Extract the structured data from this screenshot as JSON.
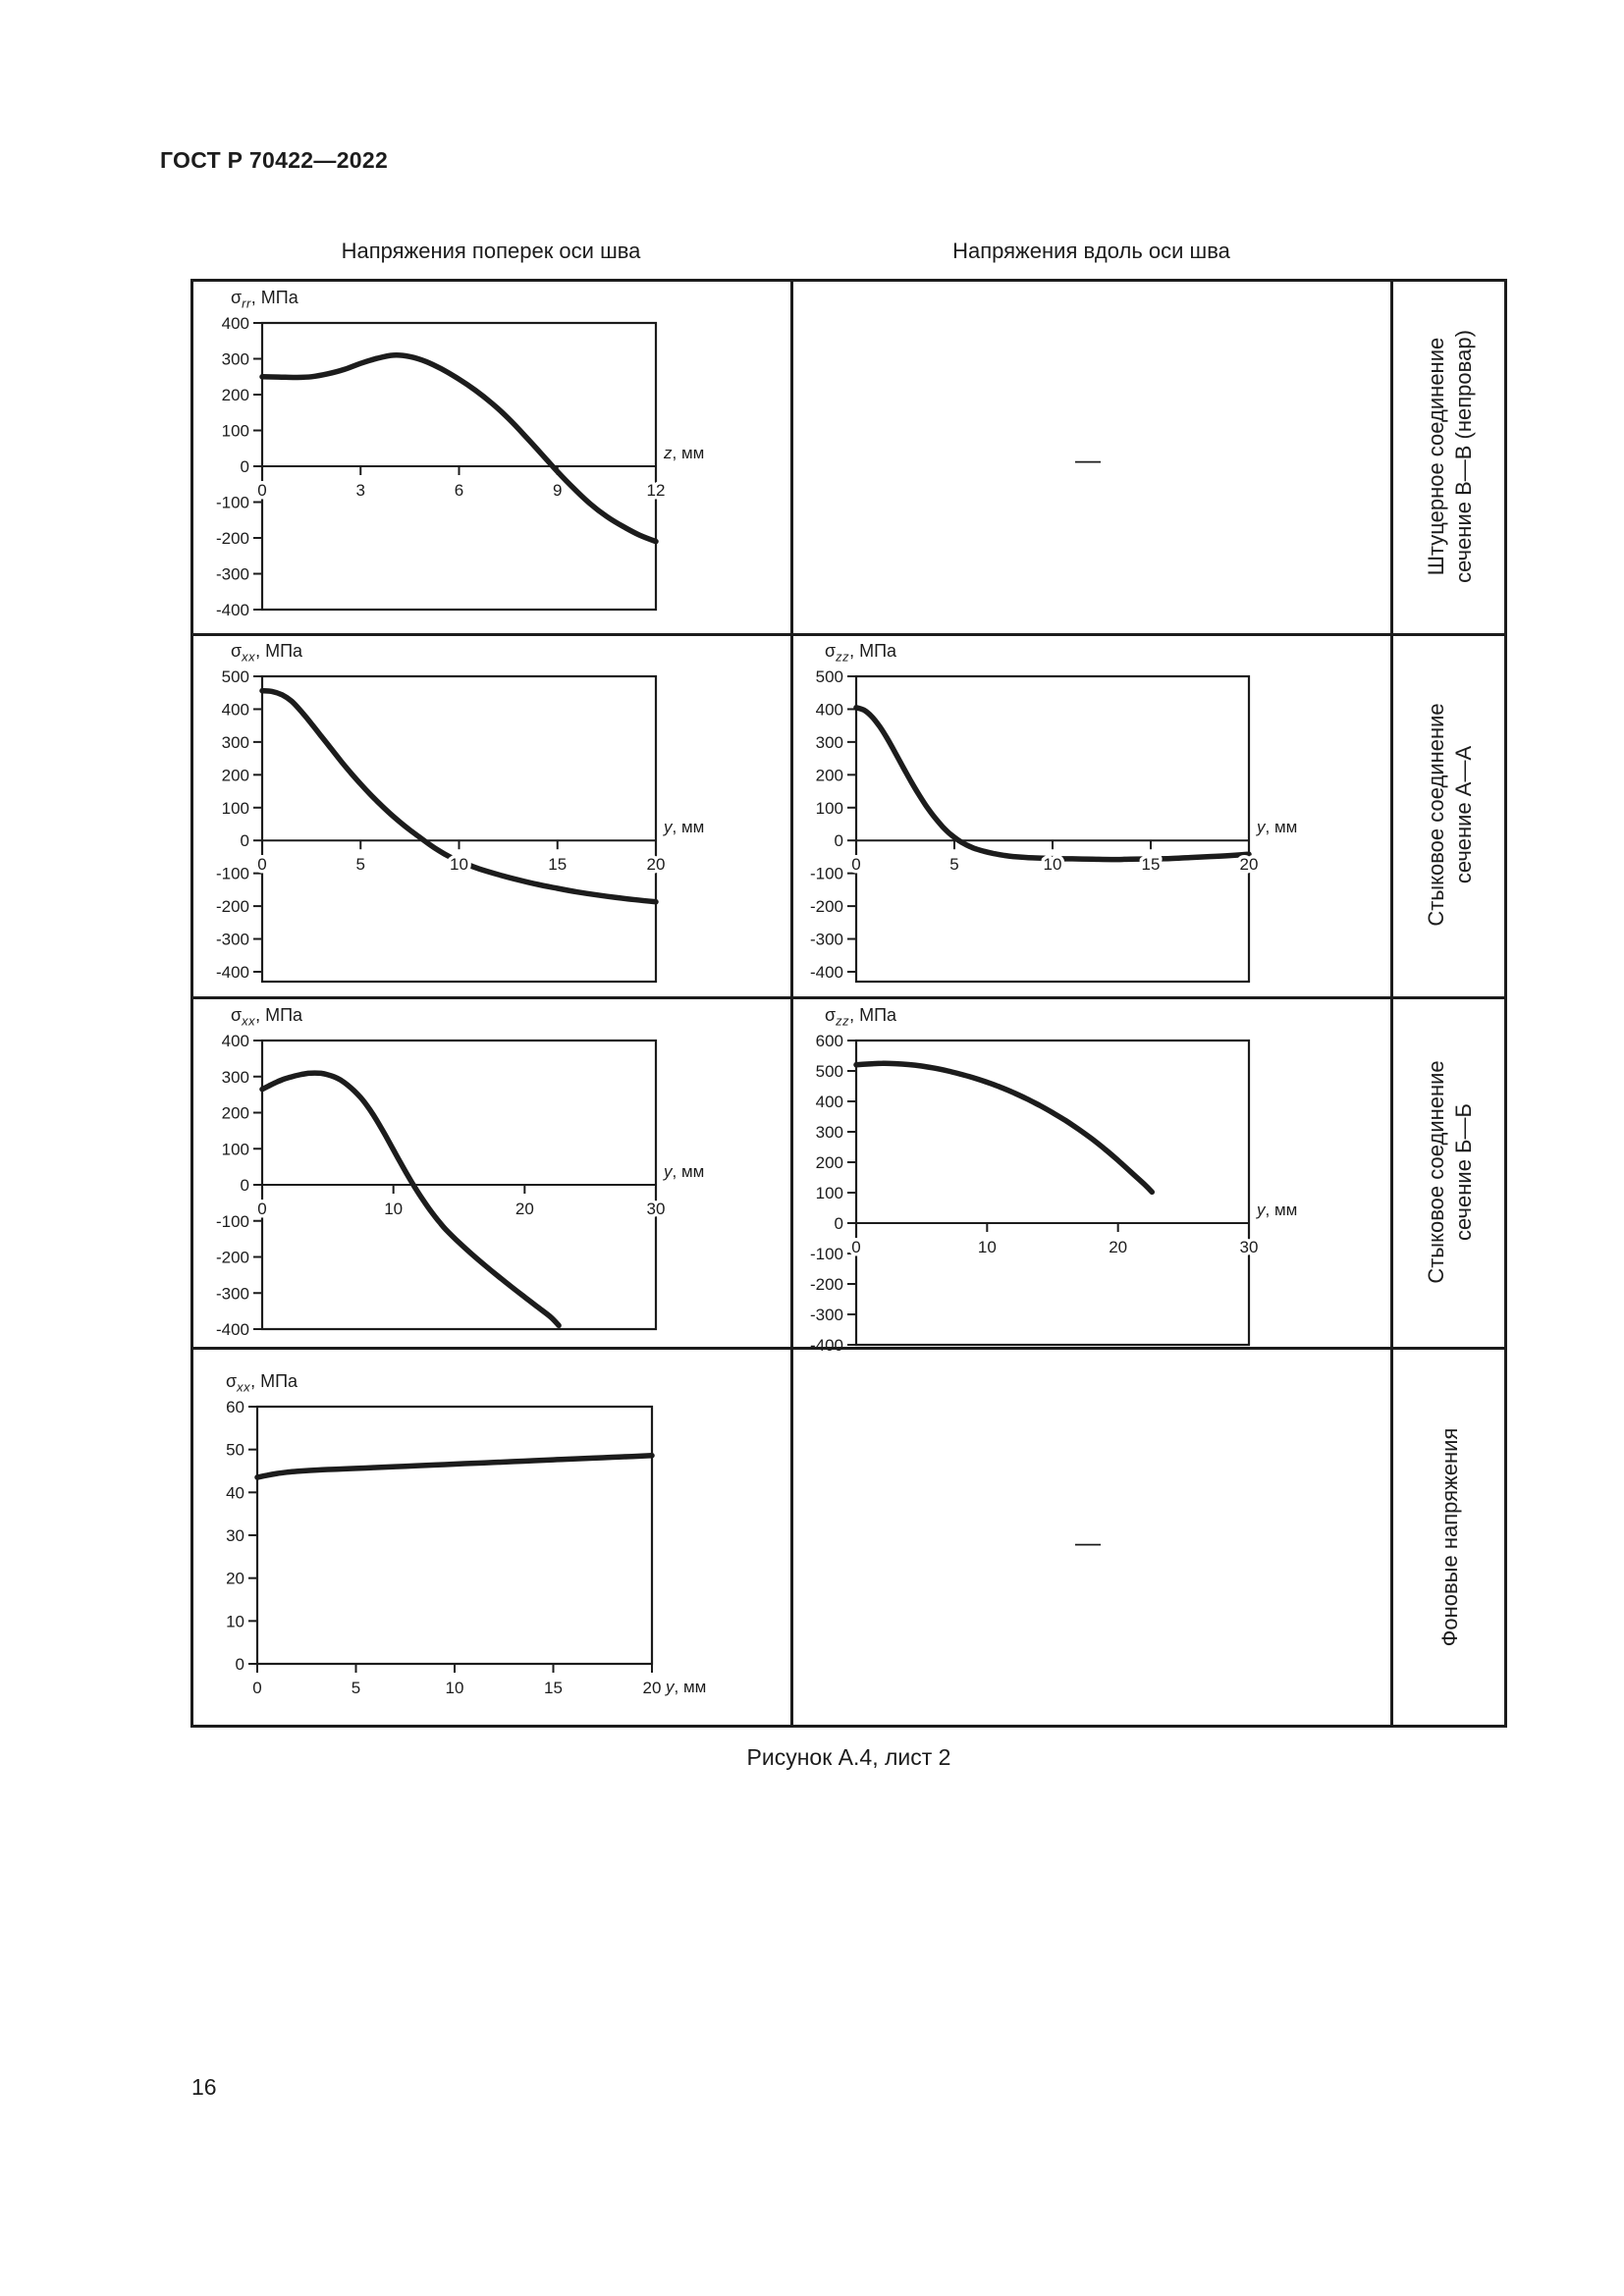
{
  "page": {
    "header": "ГОСТ Р 70422—2022",
    "caption": "Рисунок А.4, лист 2",
    "page_number": "16"
  },
  "table": {
    "column_headers": [
      "Напряжения поперек оси шва",
      "Напряжения вдоль оси шва"
    ],
    "row_labels": [
      {
        "line1": "Штуцерное соединение",
        "line2": "сечение В—В (непровар)"
      },
      {
        "line1": "Стыковое соединение",
        "line2": "сечение А—А"
      },
      {
        "line1": "Стыковое соединение",
        "line2": "сечение Б—Б"
      },
      {
        "line1": "Фоновые напряжения"
      }
    ],
    "empty_cell_dash": "—",
    "ink_color": "#1c1c1c"
  },
  "chart_data": [
    {
      "type": "line",
      "position": "row1-left",
      "ylabel": {
        "sigma": "σ",
        "sub": "rr",
        "unit": ", МПа"
      },
      "xlabel": {
        "var": "z",
        "unit": ", мм"
      },
      "xlim": [
        0,
        12
      ],
      "xticks": [
        0,
        3,
        6,
        9,
        12
      ],
      "yticks": [
        400,
        300,
        200,
        100,
        0,
        -100,
        -200,
        -300,
        -400
      ],
      "ylim_box": [
        -400,
        400
      ],
      "x_axis": "zero",
      "grid": false,
      "points": [
        [
          0,
          250
        ],
        [
          0.5,
          249
        ],
        [
          1,
          248
        ],
        [
          1.5,
          250
        ],
        [
          2,
          258
        ],
        [
          2.5,
          270
        ],
        [
          3,
          287
        ],
        [
          3.5,
          301
        ],
        [
          4,
          310
        ],
        [
          4.5,
          306
        ],
        [
          5,
          292
        ],
        [
          5.5,
          270
        ],
        [
          6,
          243
        ],
        [
          6.5,
          212
        ],
        [
          7,
          176
        ],
        [
          7.5,
          134
        ],
        [
          8,
          86
        ],
        [
          8.5,
          36
        ],
        [
          9,
          -15
        ],
        [
          9.5,
          -62
        ],
        [
          10,
          -105
        ],
        [
          10.5,
          -140
        ],
        [
          11,
          -168
        ],
        [
          11.5,
          -192
        ],
        [
          12,
          -210
        ]
      ]
    },
    {
      "type": "line",
      "position": "row2-left",
      "ylabel": {
        "sigma": "σ",
        "sub": "xx",
        "unit": ", МПа"
      },
      "xlabel": {
        "var": "y",
        "unit": ", мм"
      },
      "xlim": [
        0,
        20
      ],
      "xticks": [
        0,
        5,
        10,
        15,
        20
      ],
      "yticks": [
        500,
        400,
        300,
        200,
        100,
        0,
        -100,
        -200,
        -300,
        -400
      ],
      "ylim_box": [
        -430,
        500
      ],
      "x_axis": "zero",
      "grid": false,
      "points": [
        [
          0,
          456
        ],
        [
          0.5,
          454
        ],
        [
          1,
          444
        ],
        [
          1.5,
          424
        ],
        [
          2,
          392
        ],
        [
          2.5,
          356
        ],
        [
          3,
          318
        ],
        [
          3.5,
          280
        ],
        [
          4,
          242
        ],
        [
          4.5,
          206
        ],
        [
          5,
          172
        ],
        [
          5.5,
          140
        ],
        [
          6,
          110
        ],
        [
          6.5,
          82
        ],
        [
          7,
          56
        ],
        [
          7.5,
          32
        ],
        [
          8,
          10
        ],
        [
          8.5,
          -12
        ],
        [
          9,
          -32
        ],
        [
          9.5,
          -49
        ],
        [
          10,
          -63
        ],
        [
          11,
          -86
        ],
        [
          12,
          -104
        ],
        [
          13,
          -120
        ],
        [
          14,
          -134
        ],
        [
          15,
          -146
        ],
        [
          16,
          -157
        ],
        [
          17,
          -166
        ],
        [
          18,
          -174
        ],
        [
          19,
          -181
        ],
        [
          20,
          -187
        ]
      ]
    },
    {
      "type": "line",
      "position": "row2-right",
      "ylabel": {
        "sigma": "σ",
        "sub": "zz",
        "unit": ", МПа"
      },
      "xlabel": {
        "var": "y",
        "unit": ", мм"
      },
      "xlim": [
        0,
        20
      ],
      "xticks": [
        0,
        5,
        10,
        15,
        20
      ],
      "yticks": [
        500,
        400,
        300,
        200,
        100,
        0,
        -100,
        -200,
        -300,
        -400
      ],
      "ylim_box": [
        -430,
        500
      ],
      "x_axis": "zero",
      "grid": false,
      "points": [
        [
          0,
          405
        ],
        [
          0.4,
          397
        ],
        [
          0.8,
          377
        ],
        [
          1.2,
          347
        ],
        [
          1.6,
          309
        ],
        [
          2,
          266
        ],
        [
          2.4,
          222
        ],
        [
          2.8,
          179
        ],
        [
          3.2,
          139
        ],
        [
          3.6,
          102
        ],
        [
          4,
          70
        ],
        [
          4.4,
          42
        ],
        [
          4.8,
          19
        ],
        [
          5.2,
          1
        ],
        [
          5.6,
          -13
        ],
        [
          6,
          -24
        ],
        [
          6.5,
          -33
        ],
        [
          7,
          -40
        ],
        [
          7.5,
          -45
        ],
        [
          8,
          -49
        ],
        [
          9,
          -53
        ],
        [
          10,
          -55
        ],
        [
          11,
          -56
        ],
        [
          12,
          -57
        ],
        [
          13,
          -58
        ],
        [
          14,
          -57
        ],
        [
          15,
          -56
        ],
        [
          16,
          -55
        ],
        [
          17,
          -52
        ],
        [
          18,
          -49
        ],
        [
          19,
          -46
        ],
        [
          20,
          -42
        ]
      ]
    },
    {
      "type": "line",
      "position": "row3-left",
      "ylabel": {
        "sigma": "σ",
        "sub": "xx",
        "unit": ", МПа"
      },
      "xlabel": {
        "var": "y",
        "unit": ", мм"
      },
      "xlim": [
        0,
        30
      ],
      "xticks": [
        0,
        10,
        20,
        30
      ],
      "yticks": [
        400,
        300,
        200,
        100,
        0,
        -100,
        -200,
        -300,
        -400
      ],
      "ylim_box": [
        -400,
        400
      ],
      "x_axis": "zero",
      "grid": false,
      "points": [
        [
          0,
          265
        ],
        [
          0.5,
          274
        ],
        [
          1,
          283
        ],
        [
          1.5,
          291
        ],
        [
          2,
          297
        ],
        [
          2.5,
          302
        ],
        [
          3,
          306
        ],
        [
          3.5,
          309
        ],
        [
          4,
          310
        ],
        [
          4.5,
          309
        ],
        [
          5,
          305
        ],
        [
          5.5,
          299
        ],
        [
          6,
          290
        ],
        [
          6.5,
          277
        ],
        [
          7,
          261
        ],
        [
          7.5,
          242
        ],
        [
          8,
          219
        ],
        [
          8.5,
          192
        ],
        [
          9,
          162
        ],
        [
          9.5,
          130
        ],
        [
          10,
          97
        ],
        [
          10.5,
          64
        ],
        [
          11,
          32
        ],
        [
          11.5,
          1
        ],
        [
          12,
          -28
        ],
        [
          12.5,
          -55
        ],
        [
          13,
          -80
        ],
        [
          13.5,
          -103
        ],
        [
          14,
          -124
        ],
        [
          15,
          -160
        ],
        [
          16,
          -193
        ],
        [
          17,
          -224
        ],
        [
          18,
          -254
        ],
        [
          19,
          -283
        ],
        [
          20,
          -311
        ],
        [
          21,
          -339
        ],
        [
          22,
          -367
        ],
        [
          22.6,
          -390
        ]
      ]
    },
    {
      "type": "line",
      "position": "row3-right",
      "ylabel": {
        "sigma": "σ",
        "sub": "zz",
        "unit": ", МПа"
      },
      "xlabel": {
        "var": "y",
        "unit": ", мм"
      },
      "xlim": [
        0,
        30
      ],
      "xticks": [
        0,
        10,
        20,
        30
      ],
      "yticks": [
        600,
        500,
        400,
        300,
        200,
        100,
        0,
        -100,
        -200,
        -300,
        -400
      ],
      "ylim_box": [
        -400,
        600
      ],
      "x_axis": "zero",
      "grid": false,
      "points": [
        [
          0,
          520
        ],
        [
          1,
          523
        ],
        [
          2,
          525
        ],
        [
          3,
          524
        ],
        [
          4,
          521
        ],
        [
          5,
          516
        ],
        [
          6,
          509
        ],
        [
          7,
          500
        ],
        [
          8,
          489
        ],
        [
          9,
          477
        ],
        [
          10,
          463
        ],
        [
          11,
          447
        ],
        [
          12,
          429
        ],
        [
          13,
          409
        ],
        [
          14,
          387
        ],
        [
          15,
          363
        ],
        [
          16,
          337
        ],
        [
          17,
          308
        ],
        [
          18,
          277
        ],
        [
          19,
          243
        ],
        [
          20,
          206
        ],
        [
          21,
          167
        ],
        [
          22,
          128
        ],
        [
          22.6,
          102
        ]
      ]
    },
    {
      "type": "line",
      "position": "row4-left",
      "ylabel": {
        "sigma": "σ",
        "sub": "xx",
        "unit": ", МПа"
      },
      "xlabel": {
        "var": "y",
        "unit": ", мм"
      },
      "xlim": [
        0,
        20
      ],
      "xticks": [
        0,
        5,
        10,
        15,
        20
      ],
      "yticks": [
        60,
        50,
        40,
        30,
        20,
        10,
        0
      ],
      "ylim_box": [
        0,
        60
      ],
      "x_axis": "bottom",
      "grid": false,
      "points": [
        [
          0,
          43.5
        ],
        [
          0.5,
          44
        ],
        [
          1,
          44.4
        ],
        [
          1.5,
          44.7
        ],
        [
          2,
          44.9
        ],
        [
          3,
          45.2
        ],
        [
          4,
          45.4
        ],
        [
          5,
          45.6
        ],
        [
          6,
          45.8
        ],
        [
          7,
          46
        ],
        [
          8,
          46.2
        ],
        [
          9,
          46.4
        ],
        [
          10,
          46.6
        ],
        [
          11,
          46.8
        ],
        [
          12,
          47
        ],
        [
          13,
          47.2
        ],
        [
          14,
          47.4
        ],
        [
          15,
          47.6
        ],
        [
          16,
          47.8
        ],
        [
          17,
          48
        ],
        [
          18,
          48.2
        ],
        [
          19,
          48.4
        ],
        [
          20,
          48.6
        ]
      ]
    }
  ]
}
